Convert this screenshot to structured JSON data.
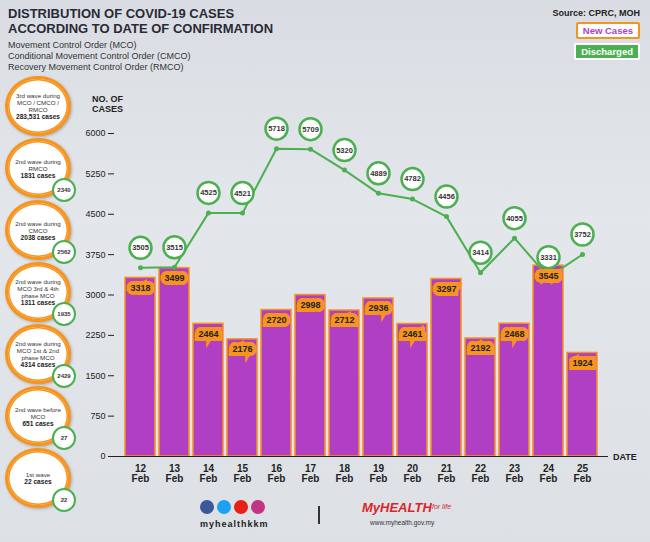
{
  "chart_data": {
    "type": "bar",
    "title": "DISTRIBUTION OF COVID-19 CASES ACCORDING TO DATE OF CONFIRMATION",
    "subtitle": [
      "Movement Control Order (MCO)",
      "Conditional Movement Control Order (CMCO)",
      "Recovery Movement Control Order (RMCO)"
    ],
    "source": "Source: CPRC, MOH",
    "y_label": "NO. OF CASES",
    "x_label": "DATE",
    "categories": [
      "12 Feb",
      "13 Feb",
      "14 Feb",
      "15 Feb",
      "16 Feb",
      "17 Feb",
      "18 Feb",
      "19 Feb",
      "20 Feb",
      "21 Feb",
      "22 Feb",
      "23 Feb",
      "24 Feb",
      "25 Feb"
    ],
    "series": [
      {
        "name": "New Cases",
        "type": "bar",
        "color": "#b03fc4",
        "values": [
          3318,
          3499,
          2464,
          2176,
          2720,
          2998,
          2712,
          2936,
          2461,
          3297,
          2192,
          2468,
          3545,
          1924
        ]
      },
      {
        "name": "Discharged",
        "type": "line",
        "color": "#4caf50",
        "marker": "circle",
        "values": [
          3505,
          3515,
          4525,
          4521,
          5718,
          5709,
          5320,
          4889,
          4782,
          4456,
          3414,
          4055,
          3331,
          3752
        ]
      }
    ],
    "ylim": [
      0,
      6000
    ],
    "yticks": [
      0,
      750,
      1500,
      2250,
      3000,
      3750,
      4500,
      5250,
      6000
    ],
    "data_labels": true,
    "legend": "top-right",
    "side_panel": [
      {
        "label": "3rd wave during MCO / CMCO / RMCO",
        "cases": "283,531 cases"
      },
      {
        "label": "2nd wave during RMCO",
        "cases": "1831 cases",
        "discharged": 2340
      },
      {
        "label": "2nd wave during CMCO",
        "cases": "2038 cases",
        "discharged": 2562
      },
      {
        "label": "2nd wave during MCO 3rd & 4th phase MCO",
        "cases": "1311 cases",
        "discharged": 1935
      },
      {
        "label": "2nd wave during MCO 1st & 2nd phase MCO",
        "cases": "4314 cases",
        "discharged": 2429
      },
      {
        "label": "2nd wave before MCO",
        "cases": "651 cases",
        "discharged": 27
      },
      {
        "label": "1st wave",
        "cases": "22 cases",
        "discharged": 22
      }
    ],
    "footer": {
      "handle": "myhealthkkm",
      "logo": "MyHEALTH",
      "tagline": "for life",
      "url": "www.myhealth.gov.my"
    }
  }
}
